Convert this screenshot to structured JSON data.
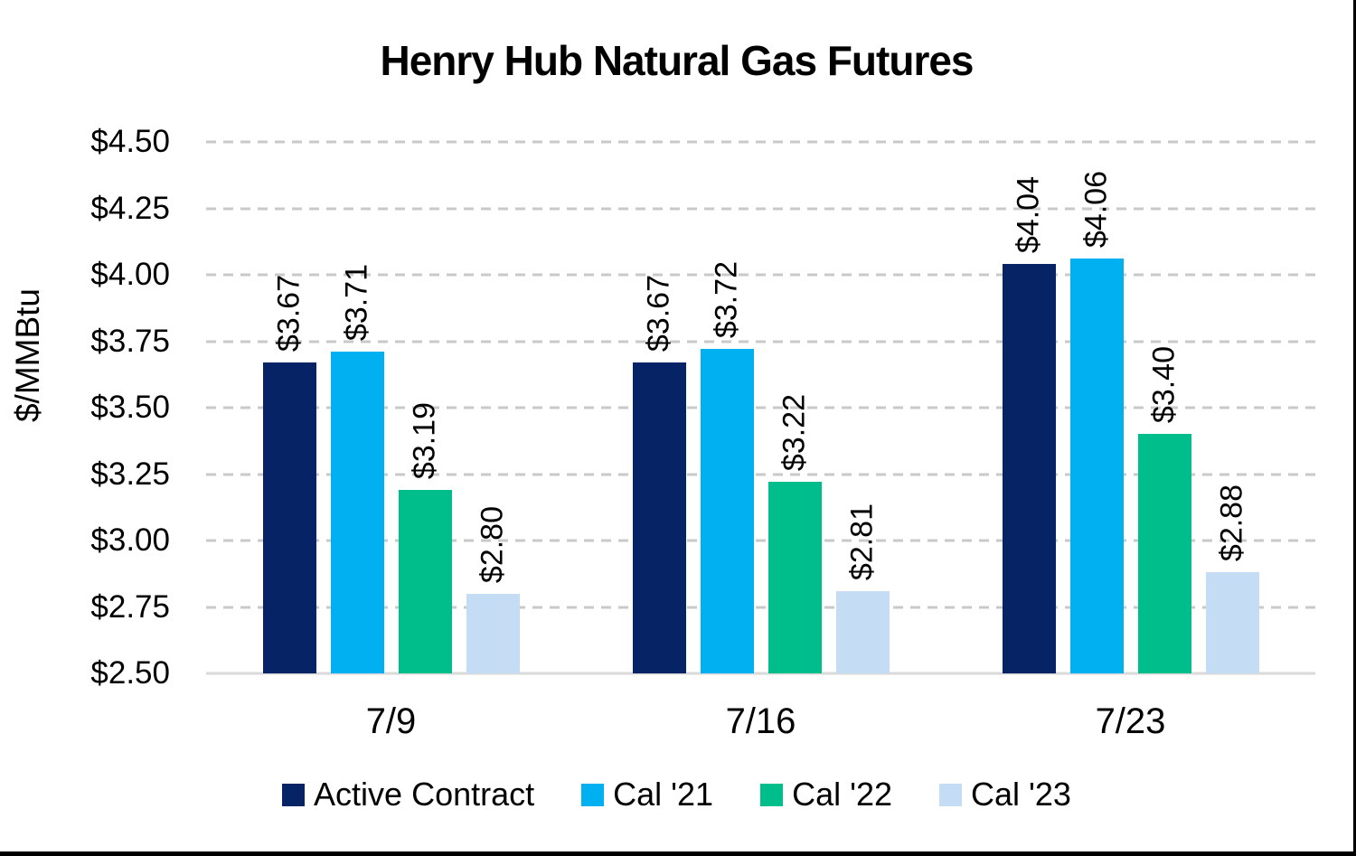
{
  "page": {
    "background": "#FFFFFF",
    "frame_border_color": "#000000",
    "gridline_color": "#C9C9C9",
    "axis_line_color": "#DADADA",
    "text_color": "#000000"
  },
  "chart_data": {
    "type": "bar",
    "title": "Henry Hub Natural Gas Futures",
    "ylabel": "$/MMBtu",
    "xlabel": "",
    "categories": [
      "7/9",
      "7/16",
      "7/23"
    ],
    "series": [
      {
        "name": "Active Contract",
        "color": "#052365",
        "values": [
          3.67,
          3.67,
          4.04
        ],
        "labels": [
          "$3.67",
          "$3.67",
          "$4.04"
        ]
      },
      {
        "name": "Cal '21",
        "color": "#00B0F0",
        "values": [
          3.71,
          3.72,
          4.06
        ],
        "labels": [
          "$3.71",
          "$3.72",
          "$4.06"
        ]
      },
      {
        "name": "Cal '22",
        "color": "#00BE8C",
        "values": [
          3.19,
          3.22,
          3.4
        ],
        "labels": [
          "$3.19",
          "$3.22",
          "$3.40"
        ]
      },
      {
        "name": "Cal '23",
        "color": "#C5DDF4",
        "values": [
          2.8,
          2.81,
          2.88
        ],
        "labels": [
          "$2.80",
          "$2.81",
          "$2.88"
        ]
      }
    ],
    "ylim": [
      2.5,
      4.5
    ],
    "yticks": [
      {
        "value": 2.5,
        "label": "$2.50"
      },
      {
        "value": 2.75,
        "label": "$2.75"
      },
      {
        "value": 3.0,
        "label": "$3.00"
      },
      {
        "value": 3.25,
        "label": "$3.25"
      },
      {
        "value": 3.5,
        "label": "$3.50"
      },
      {
        "value": 3.75,
        "label": "$3.75"
      },
      {
        "value": 4.0,
        "label": "$4.00"
      },
      {
        "value": 4.25,
        "label": "$4.25"
      },
      {
        "value": 4.5,
        "label": "$4.50"
      }
    ],
    "grid": "horizontal-dashed",
    "legend_position": "bottom",
    "data_label_rotation": 90
  }
}
